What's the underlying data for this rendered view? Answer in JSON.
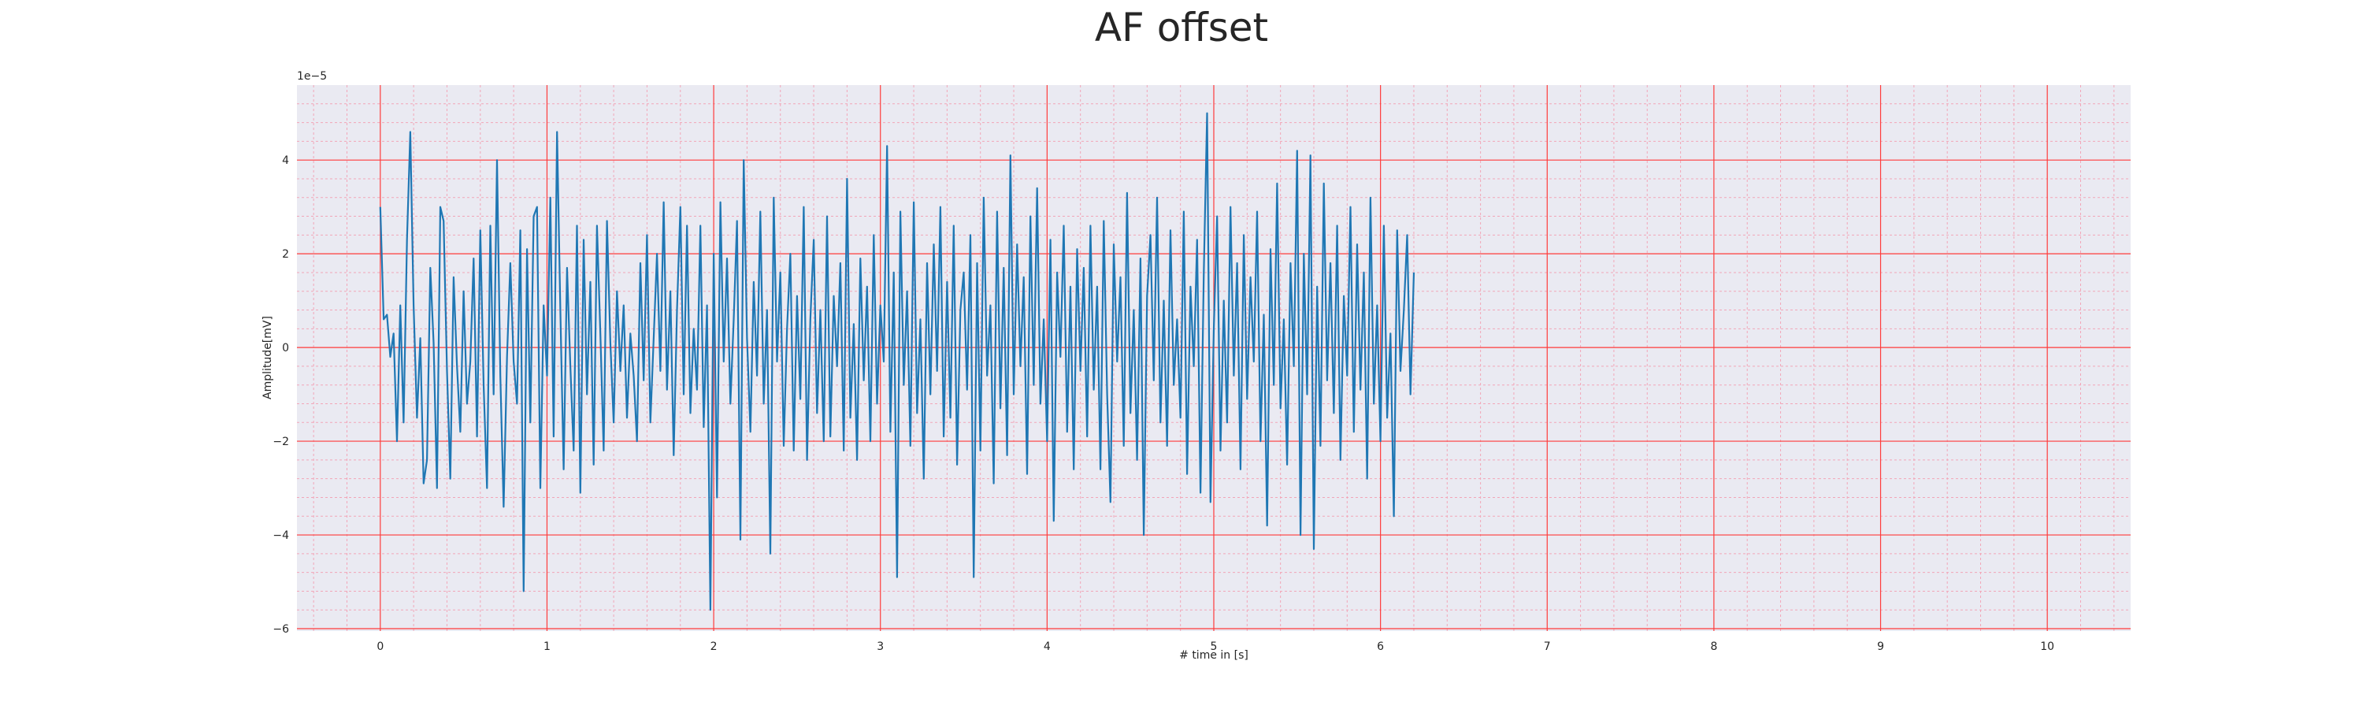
{
  "chart_data": {
    "type": "line",
    "title": "AF offset",
    "xlabel": "# time in [s]",
    "ylabel": "Amplitude[mV]",
    "offset_text": "1e−5",
    "xlim": [
      -0.5,
      10.5
    ],
    "ylim": [
      -6.05,
      5.6
    ],
    "x_ticks": [
      0,
      1,
      2,
      3,
      4,
      5,
      6,
      7,
      8,
      9,
      10
    ],
    "x_tick_labels": [
      "0",
      "1",
      "2",
      "3",
      "4",
      "5",
      "6",
      "7",
      "8",
      "9",
      "10"
    ],
    "y_ticks": [
      -6,
      -4,
      -2,
      0,
      2,
      4
    ],
    "y_tick_labels": [
      "−6",
      "−4",
      "−2",
      "0",
      "2",
      "4"
    ],
    "y_scale": 1e-05,
    "grid": true,
    "colors": {
      "line": "#1f77b4",
      "background": "#eaeaf2",
      "major_grid": "#ff3b3b",
      "minor_grid": "#f2a6b8"
    },
    "series": [
      {
        "name": "AF offset",
        "x_start": 0,
        "x_step": 0.02,
        "values": [
          3.0,
          0.6,
          0.7,
          -0.2,
          0.3,
          -2.0,
          0.9,
          -1.6,
          2.3,
          4.6,
          0.9,
          -1.5,
          0.2,
          -2.9,
          -2.4,
          1.7,
          0.1,
          -3.0,
          3.0,
          2.7,
          -0.5,
          -2.8,
          1.5,
          -0.4,
          -1.8,
          1.2,
          -1.2,
          -0.3,
          1.9,
          -1.9,
          2.5,
          -0.8,
          -3.0,
          2.6,
          -1.0,
          4.0,
          -0.6,
          -3.4,
          -0.2,
          1.8,
          -0.3,
          -1.2,
          2.5,
          -5.2,
          2.1,
          -1.6,
          2.8,
          3.0,
          -3.0,
          0.9,
          -0.6,
          3.2,
          -1.9,
          4.6,
          0.8,
          -2.6,
          1.7,
          -0.4,
          -2.2,
          2.6,
          -3.1,
          2.3,
          -1.0,
          1.4,
          -2.5,
          2.6,
          0.3,
          -2.2,
          2.7,
          0.1,
          -1.6,
          1.2,
          -0.5,
          0.9,
          -1.5,
          0.3,
          -0.6,
          -2.0,
          1.8,
          -0.7,
          2.4,
          -1.6,
          0.2,
          2.0,
          -0.5,
          3.1,
          -0.9,
          1.2,
          -2.3,
          0.8,
          3.0,
          -1.0,
          2.6,
          -1.4,
          0.4,
          -0.9,
          2.6,
          -1.7,
          0.9,
          -5.6,
          2.0,
          -3.2,
          3.1,
          -0.3,
          1.9,
          -1.2,
          0.6,
          2.7,
          -4.1,
          4.0,
          0.2,
          -1.8,
          1.4,
          -0.6,
          2.9,
          -1.2,
          0.8,
          -4.4,
          3.2,
          -0.3,
          1.6,
          -2.1,
          0.4,
          2.0,
          -2.2,
          1.1,
          -1.1,
          3.0,
          -2.4,
          0.6,
          2.3,
          -1.4,
          0.8,
          -2.0,
          2.8,
          -1.9,
          1.1,
          -0.4,
          1.8,
          -2.2,
          3.6,
          -1.5,
          0.5,
          -2.4,
          1.9,
          -0.7,
          1.3,
          -2.0,
          2.4,
          -1.2,
          0.9,
          -0.3,
          4.3,
          -1.8,
          1.6,
          -4.9,
          2.9,
          -0.8,
          1.2,
          -2.1,
          3.1,
          -1.4,
          0.6,
          -2.8,
          1.8,
          -1.0,
          2.2,
          -0.5,
          3.0,
          -1.9,
          1.4,
          -1.5,
          2.6,
          -2.5,
          0.8,
          1.6,
          -0.9,
          2.4,
          -4.9,
          1.8,
          -2.2,
          3.2,
          -0.6,
          0.9,
          -2.9,
          2.9,
          -1.3,
          1.7,
          -2.3,
          4.1,
          -1.0,
          2.2,
          -0.4,
          1.5,
          -2.7,
          2.8,
          -0.8,
          3.4,
          -1.2,
          0.6,
          -2.0,
          2.3,
          -3.7,
          1.6,
          -0.2,
          2.6,
          -1.8,
          1.3,
          -2.6,
          2.1,
          -0.5,
          1.7,
          -1.9,
          2.6,
          -0.9,
          1.3,
          -2.6,
          2.7,
          -1.0,
          -3.3,
          2.2,
          -0.3,
          1.5,
          -2.1,
          3.3,
          -1.4,
          0.8,
          -2.4,
          1.9,
          -4.0,
          1.1,
          2.4,
          -0.7,
          3.2,
          -1.6,
          1.0,
          -2.1,
          2.5,
          -0.8,
          0.6,
          -1.5,
          2.9,
          -2.7,
          1.3,
          -0.4,
          2.3,
          -3.1,
          1.6,
          5.0,
          -3.3,
          0.4,
          2.8,
          -2.2,
          1.0,
          -1.6,
          3.0,
          -0.6,
          1.8,
          -2.6,
          2.4,
          -1.1,
          1.5,
          -0.3,
          2.9,
          -2.0,
          0.7,
          -3.8,
          2.1,
          -0.8,
          3.5,
          -1.3,
          0.6,
          -2.5,
          1.8,
          -0.4,
          4.2,
          -4.0,
          2.0,
          -1.0,
          4.1,
          -4.3,
          1.3,
          -2.1,
          3.5,
          -0.7,
          1.8,
          -1.4,
          2.6,
          -2.4,
          1.1,
          -0.6,
          3.0,
          -1.8,
          2.2,
          -0.9,
          1.6,
          -2.8,
          3.2,
          -1.2,
          0.9,
          -2.0,
          2.6,
          -1.5,
          0.3,
          -3.6,
          2.5,
          -0.5,
          0.8,
          2.4,
          -1.0,
          1.6
        ]
      }
    ]
  }
}
